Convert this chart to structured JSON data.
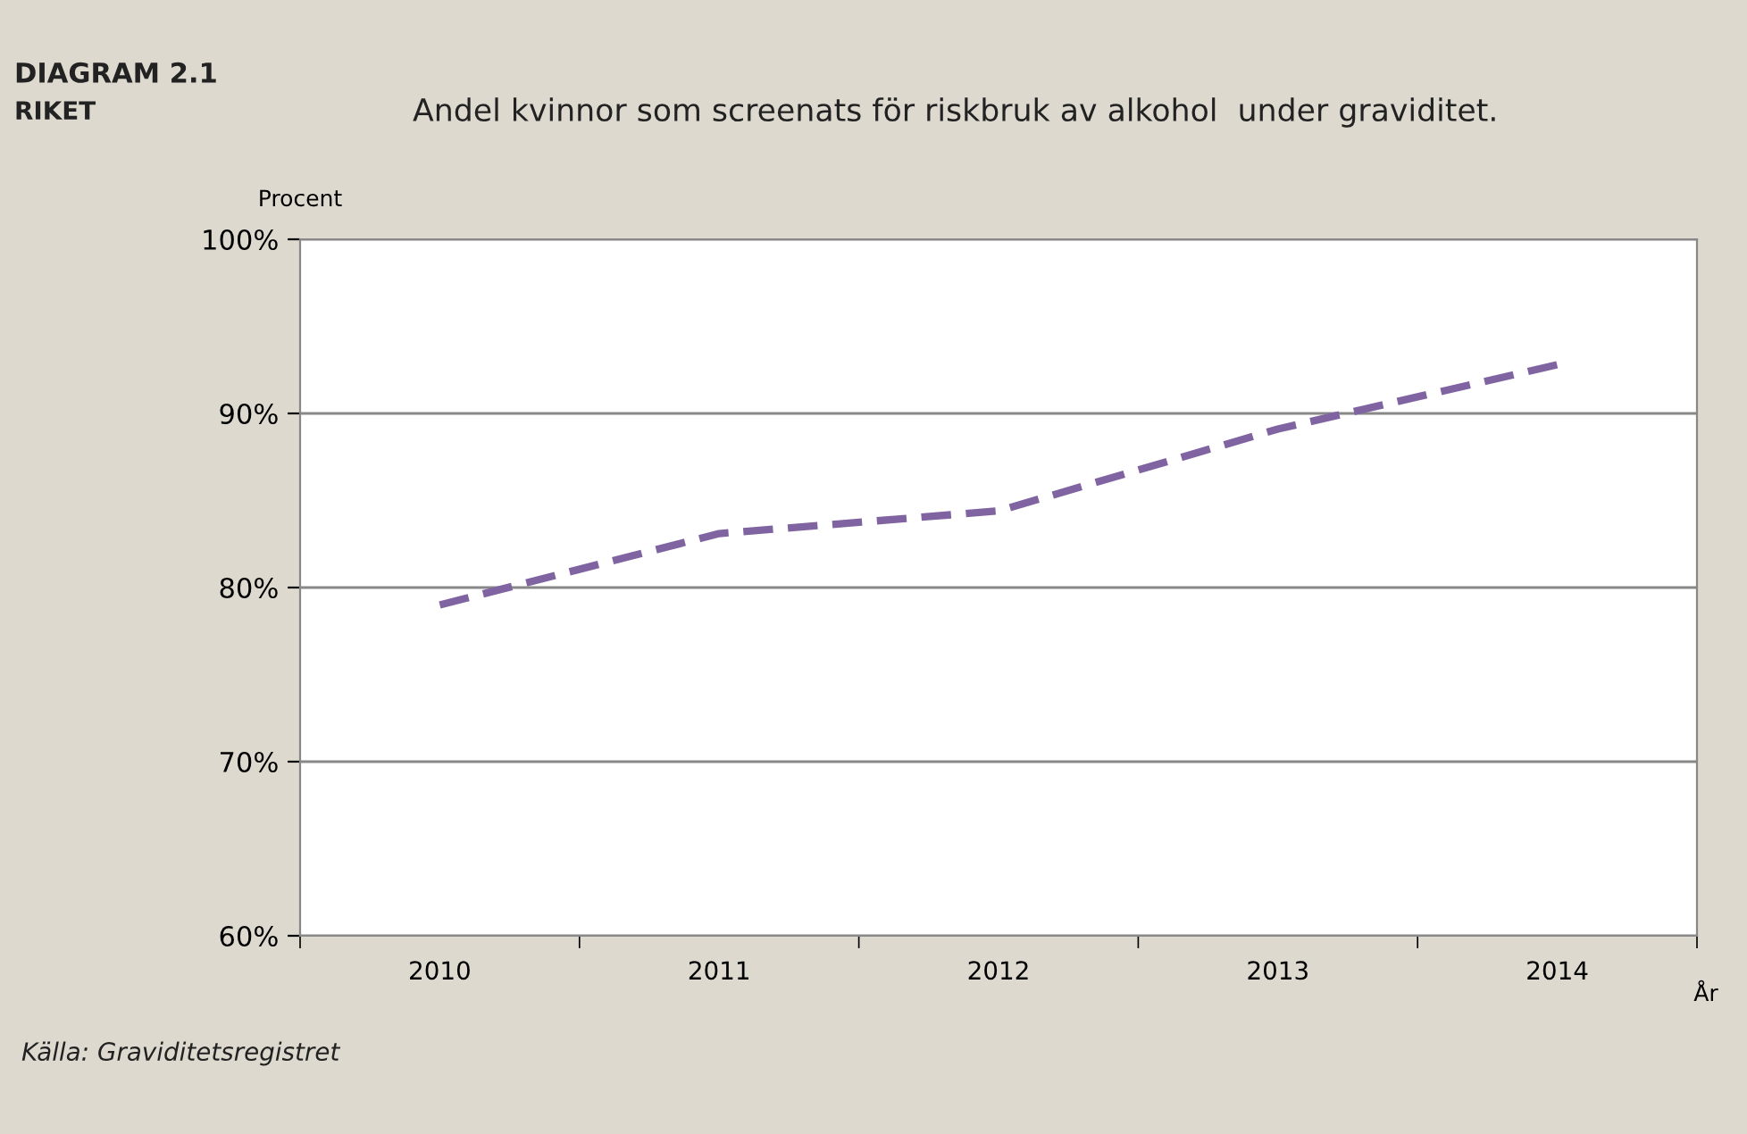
{
  "chart_data": {
    "type": "line",
    "title": "Andel kvinnor som screenats för riskbruk av alkohol  under graviditet.",
    "xlabel": "År",
    "ylabel": "Procent",
    "annotations": [
      "DIAGRAM 2.1",
      "RIKET",
      "Källa: Graviditetsregistret"
    ],
    "categories": [
      "2010",
      "2011",
      "2012",
      "2013",
      "2014"
    ],
    "series": [
      {
        "color": "#8064a2",
        "values": [
          79.0,
          83.1,
          84.4,
          89.1,
          92.8
        ]
      }
    ],
    "ylim": [
      60,
      100
    ],
    "yticks": [
      {
        "value": 60,
        "label": "60%"
      },
      {
        "value": 70,
        "label": "70%"
      },
      {
        "value": 80,
        "label": "80%"
      },
      {
        "value": 90,
        "label": "90%"
      },
      {
        "value": 100,
        "label": "100%"
      }
    ],
    "grid": "y",
    "line_style": "dashed",
    "marker": "none"
  }
}
